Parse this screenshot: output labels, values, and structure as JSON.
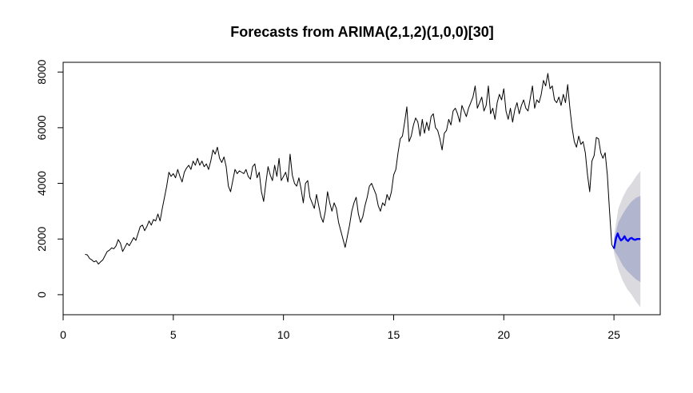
{
  "chart_data": {
    "type": "line",
    "title": "Forecasts from ARIMA(2,1,2)(1,0,0)[30]",
    "xlabel": "",
    "ylabel": "",
    "xlim": [
      0,
      27.1
    ],
    "ylim": [
      -720,
      8350
    ],
    "x_ticks": [
      0,
      5,
      10,
      15,
      20,
      25
    ],
    "y_ticks": [
      0,
      2000,
      4000,
      6000,
      8000
    ],
    "grid": false,
    "legend": "none",
    "colors": {
      "history": "#000000",
      "forecast": "#0000ff",
      "pi80": "#b1b5ce",
      "pi95": "#dbdbdf"
    },
    "series": [
      {
        "kind": "history",
        "points": [
          [
            1.0,
            1450
          ],
          [
            1.1,
            1430
          ],
          [
            1.2,
            1300
          ],
          [
            1.3,
            1250
          ],
          [
            1.4,
            1180
          ],
          [
            1.5,
            1220
          ],
          [
            1.6,
            1100
          ],
          [
            1.7,
            1180
          ],
          [
            1.8,
            1250
          ],
          [
            1.9,
            1400
          ],
          [
            2.0,
            1550
          ],
          [
            2.1,
            1600
          ],
          [
            2.2,
            1680
          ],
          [
            2.3,
            1650
          ],
          [
            2.4,
            1750
          ],
          [
            2.5,
            1980
          ],
          [
            2.6,
            1850
          ],
          [
            2.7,
            1550
          ],
          [
            2.8,
            1700
          ],
          [
            2.9,
            1850
          ],
          [
            3.0,
            1760
          ],
          [
            3.1,
            1900
          ],
          [
            3.2,
            2050
          ],
          [
            3.3,
            1950
          ],
          [
            3.4,
            2200
          ],
          [
            3.5,
            2450
          ],
          [
            3.6,
            2500
          ],
          [
            3.7,
            2300
          ],
          [
            3.8,
            2450
          ],
          [
            3.9,
            2650
          ],
          [
            4.0,
            2500
          ],
          [
            4.1,
            2700
          ],
          [
            4.2,
            2650
          ],
          [
            4.3,
            2900
          ],
          [
            4.4,
            2650
          ],
          [
            4.5,
            3100
          ],
          [
            4.6,
            3500
          ],
          [
            4.7,
            3900
          ],
          [
            4.8,
            4400
          ],
          [
            4.9,
            4250
          ],
          [
            5.0,
            4350
          ],
          [
            5.1,
            4200
          ],
          [
            5.2,
            4500
          ],
          [
            5.3,
            4250
          ],
          [
            5.4,
            4050
          ],
          [
            5.5,
            4400
          ],
          [
            5.6,
            4550
          ],
          [
            5.7,
            4650
          ],
          [
            5.8,
            4500
          ],
          [
            5.9,
            4800
          ],
          [
            6.0,
            4650
          ],
          [
            6.1,
            4900
          ],
          [
            6.2,
            4650
          ],
          [
            6.3,
            4800
          ],
          [
            6.4,
            4600
          ],
          [
            6.5,
            4700
          ],
          [
            6.6,
            4500
          ],
          [
            6.7,
            4800
          ],
          [
            6.8,
            5200
          ],
          [
            6.9,
            5050
          ],
          [
            7.0,
            5300
          ],
          [
            7.1,
            4900
          ],
          [
            7.2,
            4750
          ],
          [
            7.3,
            4950
          ],
          [
            7.4,
            4600
          ],
          [
            7.5,
            3900
          ],
          [
            7.6,
            3700
          ],
          [
            7.7,
            4100
          ],
          [
            7.8,
            4500
          ],
          [
            7.9,
            4350
          ],
          [
            8.0,
            4450
          ],
          [
            8.1,
            4400
          ],
          [
            8.2,
            4350
          ],
          [
            8.3,
            4500
          ],
          [
            8.4,
            4250
          ],
          [
            8.5,
            4150
          ],
          [
            8.6,
            4600
          ],
          [
            8.7,
            4700
          ],
          [
            8.8,
            4200
          ],
          [
            8.9,
            4400
          ],
          [
            9.0,
            3700
          ],
          [
            9.1,
            3350
          ],
          [
            9.2,
            4000
          ],
          [
            9.3,
            4600
          ],
          [
            9.4,
            4300
          ],
          [
            9.5,
            4100
          ],
          [
            9.6,
            4650
          ],
          [
            9.7,
            4250
          ],
          [
            9.8,
            4900
          ],
          [
            9.9,
            4100
          ],
          [
            10.0,
            4250
          ],
          [
            10.1,
            4400
          ],
          [
            10.2,
            4050
          ],
          [
            10.3,
            5050
          ],
          [
            10.4,
            4300
          ],
          [
            10.5,
            4000
          ],
          [
            10.6,
            3900
          ],
          [
            10.7,
            4200
          ],
          [
            10.8,
            3800
          ],
          [
            10.9,
            3300
          ],
          [
            11.0,
            4000
          ],
          [
            11.1,
            4100
          ],
          [
            11.2,
            3500
          ],
          [
            11.3,
            3300
          ],
          [
            11.4,
            3100
          ],
          [
            11.5,
            3600
          ],
          [
            11.6,
            3200
          ],
          [
            11.7,
            2800
          ],
          [
            11.8,
            2600
          ],
          [
            11.9,
            3000
          ],
          [
            12.0,
            3700
          ],
          [
            12.1,
            3300
          ],
          [
            12.2,
            3000
          ],
          [
            12.3,
            3300
          ],
          [
            12.4,
            3100
          ],
          [
            12.5,
            2600
          ],
          [
            12.6,
            2300
          ],
          [
            12.7,
            2000
          ],
          [
            12.8,
            1700
          ],
          [
            12.9,
            2100
          ],
          [
            13.0,
            2500
          ],
          [
            13.1,
            3000
          ],
          [
            13.2,
            3300
          ],
          [
            13.3,
            3500
          ],
          [
            13.4,
            2900
          ],
          [
            13.5,
            2600
          ],
          [
            13.6,
            2800
          ],
          [
            13.7,
            3200
          ],
          [
            13.8,
            3500
          ],
          [
            13.9,
            3900
          ],
          [
            14.0,
            4000
          ],
          [
            14.1,
            3800
          ],
          [
            14.2,
            3600
          ],
          [
            14.3,
            3200
          ],
          [
            14.4,
            3000
          ],
          [
            14.5,
            3300
          ],
          [
            14.6,
            3200
          ],
          [
            14.7,
            3600
          ],
          [
            14.8,
            3400
          ],
          [
            14.9,
            3700
          ],
          [
            15.0,
            4300
          ],
          [
            15.1,
            4500
          ],
          [
            15.2,
            5100
          ],
          [
            15.3,
            5600
          ],
          [
            15.4,
            5700
          ],
          [
            15.5,
            6200
          ],
          [
            15.6,
            6750
          ],
          [
            15.7,
            5500
          ],
          [
            15.8,
            5700
          ],
          [
            15.9,
            6100
          ],
          [
            16.0,
            6350
          ],
          [
            16.1,
            6200
          ],
          [
            16.2,
            5700
          ],
          [
            16.3,
            6300
          ],
          [
            16.4,
            5800
          ],
          [
            16.5,
            6200
          ],
          [
            16.6,
            5900
          ],
          [
            16.7,
            6400
          ],
          [
            16.8,
            6500
          ],
          [
            16.9,
            6000
          ],
          [
            17.0,
            5900
          ],
          [
            17.1,
            5600
          ],
          [
            17.2,
            5200
          ],
          [
            17.3,
            5800
          ],
          [
            17.4,
            5900
          ],
          [
            17.5,
            6300
          ],
          [
            17.6,
            6100
          ],
          [
            17.7,
            6600
          ],
          [
            17.8,
            6700
          ],
          [
            17.9,
            6500
          ],
          [
            18.0,
            6200
          ],
          [
            18.1,
            6800
          ],
          [
            18.2,
            6600
          ],
          [
            18.3,
            6400
          ],
          [
            18.4,
            6700
          ],
          [
            18.5,
            6900
          ],
          [
            18.6,
            7100
          ],
          [
            18.7,
            7500
          ],
          [
            18.8,
            6700
          ],
          [
            18.9,
            6900
          ],
          [
            19.0,
            7100
          ],
          [
            19.1,
            6600
          ],
          [
            19.2,
            6800
          ],
          [
            19.3,
            7500
          ],
          [
            19.4,
            6500
          ],
          [
            19.5,
            6700
          ],
          [
            19.6,
            6300
          ],
          [
            19.7,
            6900
          ],
          [
            19.8,
            7200
          ],
          [
            19.9,
            7000
          ],
          [
            20.0,
            7400
          ],
          [
            20.1,
            6600
          ],
          [
            20.2,
            6300
          ],
          [
            20.3,
            6700
          ],
          [
            20.4,
            6200
          ],
          [
            20.5,
            6650
          ],
          [
            20.6,
            6900
          ],
          [
            20.7,
            6500
          ],
          [
            20.8,
            6800
          ],
          [
            20.9,
            7000
          ],
          [
            21.0,
            6700
          ],
          [
            21.1,
            6600
          ],
          [
            21.2,
            7050
          ],
          [
            21.3,
            7500
          ],
          [
            21.4,
            6700
          ],
          [
            21.5,
            7000
          ],
          [
            21.6,
            6900
          ],
          [
            21.7,
            7200
          ],
          [
            21.8,
            7700
          ],
          [
            21.9,
            7500
          ],
          [
            22.0,
            7950
          ],
          [
            22.1,
            7400
          ],
          [
            22.2,
            7500
          ],
          [
            22.3,
            7000
          ],
          [
            22.4,
            6900
          ],
          [
            22.5,
            7100
          ],
          [
            22.6,
            6800
          ],
          [
            22.7,
            7200
          ],
          [
            22.8,
            6900
          ],
          [
            22.9,
            7550
          ],
          [
            23.0,
            6700
          ],
          [
            23.1,
            6000
          ],
          [
            23.2,
            5500
          ],
          [
            23.3,
            5300
          ],
          [
            23.4,
            5700
          ],
          [
            23.5,
            5400
          ],
          [
            23.6,
            5500
          ],
          [
            23.7,
            5100
          ],
          [
            23.8,
            4300
          ],
          [
            23.9,
            3700
          ],
          [
            24.0,
            4800
          ],
          [
            24.1,
            5000
          ],
          [
            24.2,
            5650
          ],
          [
            24.3,
            5600
          ],
          [
            24.4,
            5100
          ],
          [
            24.5,
            4900
          ],
          [
            24.6,
            5100
          ],
          [
            24.7,
            4300
          ],
          [
            24.8,
            3000
          ],
          [
            24.9,
            1800
          ],
          [
            25.0,
            1650
          ]
        ]
      },
      {
        "kind": "forecast",
        "points": [
          [
            25.0,
            1650
          ],
          [
            25.1,
            2050
          ],
          [
            25.17,
            2200
          ],
          [
            25.24,
            2050
          ],
          [
            25.32,
            1950
          ],
          [
            25.4,
            2000
          ],
          [
            25.48,
            2100
          ],
          [
            25.56,
            1980
          ],
          [
            25.64,
            1930
          ],
          [
            25.72,
            2010
          ],
          [
            25.8,
            2040
          ],
          [
            25.88,
            1990
          ],
          [
            25.96,
            1970
          ],
          [
            26.05,
            2000
          ],
          [
            26.2,
            2000
          ]
        ]
      }
    ],
    "intervals": [
      {
        "level": 95,
        "x": [
          25.0,
          25.2,
          25.4,
          25.6,
          25.8,
          26.0,
          26.2
        ],
        "lower": [
          1500,
          900,
          500,
          200,
          0,
          -250,
          -450
        ],
        "upper": [
          2100,
          3100,
          3500,
          3800,
          4000,
          4250,
          4450
        ]
      },
      {
        "level": 80,
        "x": [
          25.0,
          25.2,
          25.4,
          25.6,
          25.8,
          26.0,
          26.2
        ],
        "lower": [
          1600,
          1350,
          1050,
          850,
          700,
          550,
          450
        ],
        "upper": [
          2000,
          2600,
          2900,
          3150,
          3350,
          3480,
          3550
        ]
      }
    ]
  }
}
